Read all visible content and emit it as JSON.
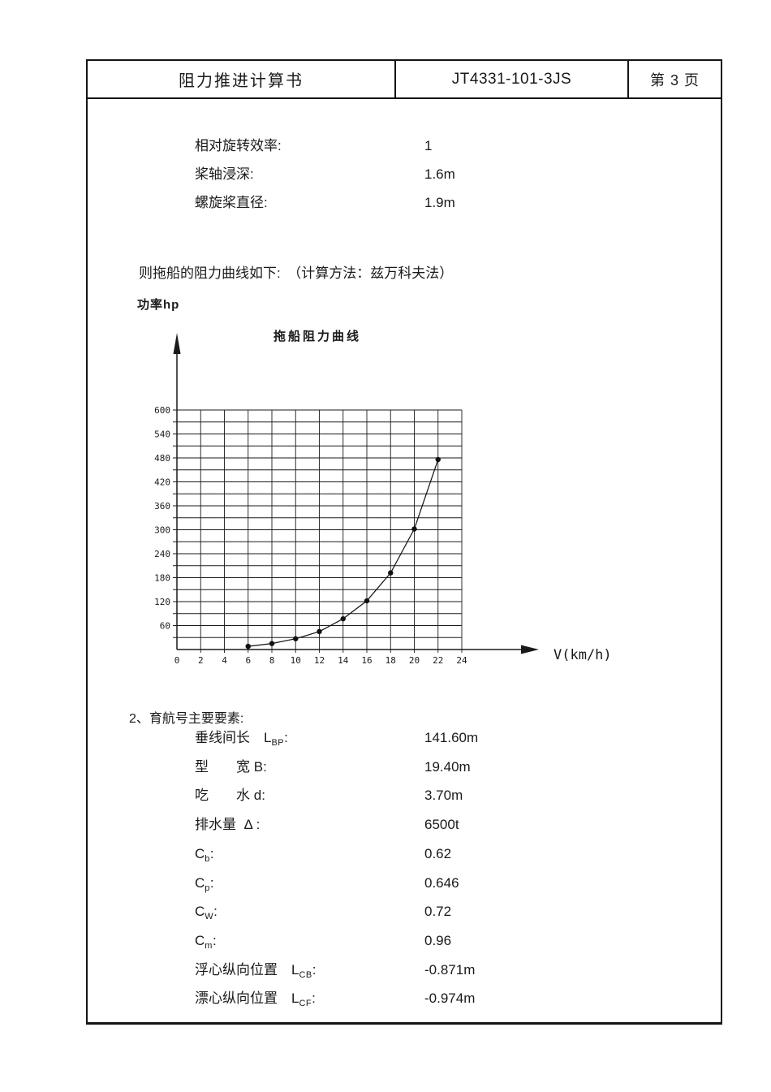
{
  "colors": {
    "ink": "#1a1a1a",
    "paper": "#ffffff"
  },
  "header": {
    "title": "阻力推进计算书",
    "doc_number": "JT4331-101-3JS",
    "page_label": "第 3  页"
  },
  "params1": {
    "rows": [
      {
        "pre": "相对旋转效率",
        "sub": "",
        "post": ":",
        "value": "1"
      },
      {
        "pre": "桨轴浸深",
        "sub": "",
        "post": ":",
        "value": "1.6m"
      },
      {
        "pre": "螺旋桨直径",
        "sub": "",
        "post": ":",
        "value": "1.9m"
      }
    ]
  },
  "statement": "则拖船的阻力曲线如下:　（计算方法：兹万科夫法）",
  "chart_data": {
    "type": "line",
    "title": "拖船阻力曲线",
    "ylabel": "功率hp",
    "xlabel": "V(km/h)",
    "x": [
      6,
      8,
      10,
      12,
      14,
      16,
      18,
      20,
      22
    ],
    "y": [
      8,
      15,
      27,
      45,
      77,
      122,
      192,
      302,
      476
    ],
    "xlim": [
      0,
      24
    ],
    "ylim": [
      0,
      600
    ],
    "x_ticks": [
      0,
      2,
      4,
      6,
      8,
      10,
      12,
      14,
      16,
      18,
      20,
      22,
      24
    ],
    "y_tick_labels": [
      60,
      120,
      180,
      240,
      300,
      360,
      420,
      480,
      540,
      600
    ],
    "x_grid_step": 2,
    "y_grid_step": 30,
    "grid": true,
    "legend": "none",
    "marker": "filled-dot"
  },
  "section2": {
    "heading": "2、育航号主要要素:",
    "rows": [
      {
        "pre": "垂线间长　L",
        "sub": "BP",
        "post": ":",
        "value": "141.60m"
      },
      {
        "pre": "型　　宽 B",
        "sub": "",
        "post": ":",
        "value": "19.40m"
      },
      {
        "pre": "吃　　水 d",
        "sub": "",
        "post": ":",
        "value": "3.70m"
      },
      {
        "pre": "排水量  Δ ",
        "sub": "",
        "post": ":",
        "value": "6500t"
      },
      {
        "pre": "C",
        "sub": "b",
        "post": ":",
        "value": "0.62"
      },
      {
        "pre": "C",
        "sub": "p",
        "post": ":",
        "value": "0.646"
      },
      {
        "pre": "C",
        "sub": "W",
        "post": ":",
        "value": "0.72"
      },
      {
        "pre": "C",
        "sub": "m",
        "post": ":",
        "value": "0.96"
      },
      {
        "pre": "浮心纵向位置　L",
        "sub": "CB",
        "post": ":",
        "value": "-0.871m"
      },
      {
        "pre": "漂心纵向位置　L",
        "sub": "CF",
        "post": ":",
        "value": "-0.974m"
      }
    ]
  }
}
